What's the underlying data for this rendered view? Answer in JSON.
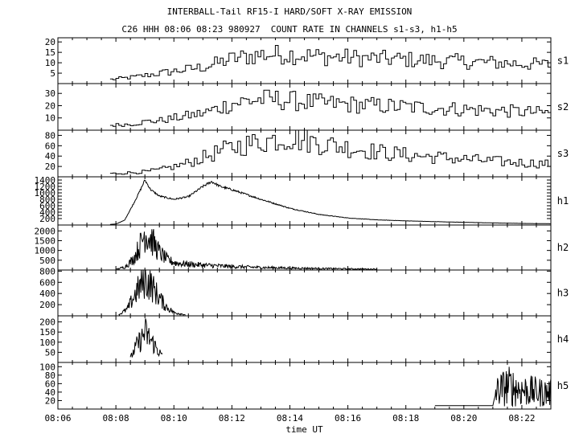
{
  "title": "INTERBALL-Tail RF15-I HARD/SOFT X-RAY EMISSION",
  "subtitle": "C26 HHH 08:06 08:23 980927  COUNT RATE IN CHANNELS s1-s3, h1-h5",
  "colors": {
    "line": "#000000",
    "background": "#ffffff"
  },
  "chart_data": {
    "type": "line",
    "xlabel": "time UT",
    "x_unit": "minutes after 08:00 UT",
    "xlim": [
      6,
      23
    ],
    "x_ticks": [
      "08:06",
      "08:08",
      "08:10",
      "08:12",
      "08:14",
      "08:16",
      "08:18",
      "08:20",
      "08:22"
    ],
    "x_tick_values": [
      6,
      8,
      10,
      12,
      14,
      16,
      18,
      20,
      22
    ],
    "grid": false,
    "panels": [
      {
        "name": "s1",
        "ylim": [
          0,
          22
        ],
        "yticks": [
          5,
          10,
          15,
          20
        ],
        "x": [
          7.8,
          8.5,
          9.0,
          9.5,
          10.0,
          10.5,
          11.0,
          11.5,
          12.0,
          12.5,
          13.0,
          13.5,
          14.0,
          14.5,
          15.0,
          16.0,
          17.0,
          18.0,
          19.0,
          20.0,
          21.0,
          22.0,
          23.0
        ],
        "y": [
          2,
          3,
          4,
          5,
          6,
          7,
          8,
          10,
          12,
          13,
          14,
          14,
          14,
          13.5,
          13,
          12.5,
          12,
          11.5,
          11,
          10.5,
          10,
          9.5,
          9
        ]
      },
      {
        "name": "s2",
        "ylim": [
          0,
          38
        ],
        "yticks": [
          10,
          20,
          30
        ],
        "x": [
          7.8,
          8.5,
          9.0,
          9.5,
          10.0,
          10.5,
          11.0,
          11.5,
          12.0,
          12.5,
          13.0,
          13.5,
          14.0,
          14.5,
          15.0,
          16.0,
          17.0,
          18.0,
          19.0,
          20.0,
          21.0,
          22.0,
          23.0
        ],
        "y": [
          4,
          5,
          7,
          8,
          10,
          12,
          14,
          18,
          22,
          24,
          25,
          25,
          24,
          23,
          22,
          21,
          20,
          19,
          18,
          17,
          16,
          15,
          14
        ]
      },
      {
        "name": "s3",
        "ylim": [
          0,
          90
        ],
        "yticks": [
          20,
          40,
          60,
          80
        ],
        "x": [
          7.8,
          8.5,
          9.0,
          9.5,
          10.0,
          10.5,
          11.0,
          11.5,
          12.0,
          12.5,
          13.0,
          13.5,
          14.0,
          14.5,
          15.0,
          16.0,
          17.0,
          18.0,
          19.0,
          20.0,
          21.0,
          22.0,
          23.0
        ],
        "y": [
          6,
          8,
          10,
          14,
          20,
          28,
          38,
          48,
          57,
          63,
          68,
          73,
          75,
          70,
          65,
          56,
          48,
          42,
          38,
          34,
          30,
          27,
          25
        ]
      },
      {
        "name": "h1",
        "ylim": [
          0,
          1500
        ],
        "yticks": [
          200,
          300,
          400,
          500,
          600,
          700,
          800,
          900,
          1000,
          1100,
          1200,
          1300,
          1400
        ],
        "ytick_labels": [
          "200",
          "",
          "400",
          "",
          "600",
          "",
          "800",
          "",
          "1000",
          "",
          "1200",
          "",
          "1400"
        ],
        "x": [
          7.8,
          8.0,
          8.3,
          8.6,
          8.85,
          9.0,
          9.2,
          9.5,
          10.0,
          10.5,
          11.0,
          11.3,
          11.6,
          12.0,
          13.0,
          14.0,
          15.0,
          16.0,
          17.0,
          18.0,
          19.0,
          20.0,
          21.0,
          22.0,
          23.0
        ],
        "y": [
          20,
          30,
          150,
          650,
          1100,
          1400,
          1100,
          900,
          800,
          880,
          1200,
          1350,
          1200,
          1100,
          800,
          520,
          330,
          220,
          160,
          130,
          105,
          85,
          65,
          50,
          40
        ]
      },
      {
        "name": "h2",
        "ylim": [
          0,
          2300
        ],
        "yticks": [
          500,
          1000,
          1500,
          2000
        ],
        "x": [
          8.0,
          8.3,
          8.6,
          8.85,
          9.0,
          9.2,
          9.5,
          9.8,
          10.1,
          10.5,
          11.0,
          12.0,
          13.0,
          14.0,
          15.0,
          16.0,
          17.0
        ],
        "y": [
          30,
          150,
          550,
          1300,
          1900,
          1600,
          900,
          500,
          350,
          300,
          250,
          180,
          130,
          100,
          80,
          60,
          45
        ]
      },
      {
        "name": "h3",
        "ylim": [
          0,
          820
        ],
        "yticks": [
          200,
          400,
          600,
          800
        ],
        "x": [
          8.1,
          8.4,
          8.7,
          8.9,
          9.0,
          9.2,
          9.4,
          9.7,
          10.0,
          10.4
        ],
        "y": [
          20,
          120,
          420,
          580,
          640,
          560,
          400,
          180,
          60,
          20
        ]
      },
      {
        "name": "h4",
        "ylim": [
          0,
          230
        ],
        "yticks": [
          50,
          100,
          150,
          200
        ],
        "x": [
          8.5,
          8.7,
          8.9,
          9.0,
          9.2,
          9.4,
          9.6
        ],
        "y": [
          20,
          80,
          120,
          150,
          110,
          70,
          30
        ]
      },
      {
        "name": "h5",
        "ylim": [
          0,
          110
        ],
        "yticks": [
          20,
          40,
          60,
          80,
          100
        ],
        "x": [
          19.0,
          19.5,
          20.0,
          20.5,
          21.0,
          21.1,
          21.5,
          22.0,
          22.5,
          23.0
        ],
        "y": [
          8,
          8,
          8,
          8,
          8,
          40,
          55,
          45,
          40,
          38
        ]
      }
    ]
  }
}
